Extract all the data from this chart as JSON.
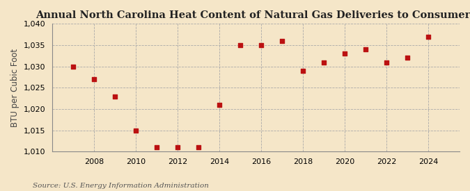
{
  "title": "Annual North Carolina Heat Content of Natural Gas Deliveries to Consumers",
  "ylabel": "BTU per Cubic Foot",
  "source": "Source: U.S. Energy Information Administration",
  "background_color": "#f5e6c8",
  "years": [
    2007,
    2008,
    2009,
    2010,
    2011,
    2012,
    2013,
    2014,
    2015,
    2016,
    2017,
    2018,
    2019,
    2020,
    2021,
    2022,
    2023,
    2024
  ],
  "values": [
    1030,
    1027,
    1023,
    1015,
    1011,
    1011,
    1011,
    1021,
    1035,
    1035,
    1036,
    1029,
    1031,
    1033,
    1034,
    1031,
    1032,
    1037
  ],
  "ylim": [
    1010,
    1040
  ],
  "yticks": [
    1010,
    1015,
    1020,
    1025,
    1030,
    1035,
    1040
  ],
  "xticks": [
    2008,
    2010,
    2012,
    2014,
    2016,
    2018,
    2020,
    2022,
    2024
  ],
  "marker_color": "#bb1111",
  "marker": "s",
  "marker_size": 5,
  "grid_color": "#aaaaaa",
  "grid_style": "--",
  "title_fontsize": 10.5,
  "axis_fontsize": 8.5,
  "tick_fontsize": 8,
  "source_fontsize": 7.5
}
